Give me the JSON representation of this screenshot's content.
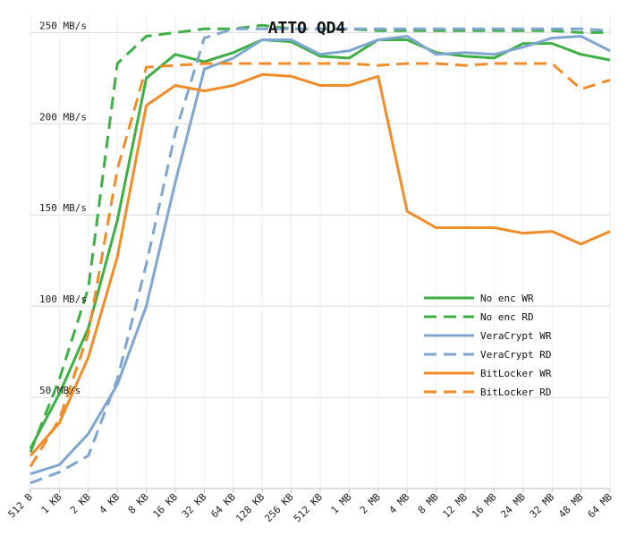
{
  "chart_data": {
    "type": "line",
    "title": "ATTO QD4",
    "xlabel": "",
    "ylabel": "",
    "ylim": [
      0,
      260
    ],
    "y_ticks": [
      {
        "value": 50,
        "label": "50 MB/s"
      },
      {
        "value": 100,
        "label": "100 MB/s"
      },
      {
        "value": 150,
        "label": "150 MB/s"
      },
      {
        "value": 200,
        "label": "200 MB/s"
      },
      {
        "value": 250,
        "label": "250 MB/s"
      }
    ],
    "categories": [
      "512 B",
      "1 KB",
      "2 KB",
      "4 KB",
      "8 KB",
      "16 KB",
      "32 KB",
      "64 KB",
      "128 KB",
      "256 KB",
      "512 KB",
      "1 MB",
      "2 MB",
      "4 MB",
      "8 MB",
      "12 MB",
      "16 MB",
      "24 MB",
      "32 MB",
      "48 MB",
      "64 MB"
    ],
    "grid": true,
    "legend_position": "right-center",
    "series": [
      {
        "name": "No enc WR",
        "color": "#3cb043",
        "dash": "solid",
        "values": [
          22,
          52,
          88,
          147,
          225,
          238,
          234,
          239,
          246,
          245,
          237,
          236,
          246,
          246,
          239,
          237,
          236,
          244,
          244,
          238,
          235
        ]
      },
      {
        "name": "No enc RD",
        "color": "#3cb043",
        "dash": "dashed",
        "values": [
          20,
          60,
          110,
          233,
          248,
          250,
          252,
          252,
          254,
          252,
          252,
          252,
          251,
          251,
          251,
          251,
          251,
          251,
          251,
          250,
          250
        ]
      },
      {
        "name": "VeraCrypt WR",
        "color": "#7ea6d0",
        "dash": "solid",
        "values": [
          8,
          13,
          30,
          57,
          100,
          168,
          230,
          236,
          246,
          246,
          238,
          240,
          246,
          248,
          238,
          239,
          238,
          242,
          247,
          248,
          240
        ]
      },
      {
        "name": "VeraCrypt RD",
        "color": "#7ea6d0",
        "dash": "dashed",
        "values": [
          3,
          9,
          18,
          60,
          123,
          195,
          247,
          252,
          252,
          252,
          252,
          252,
          252,
          252,
          252,
          252,
          252,
          252,
          252,
          252,
          251
        ]
      },
      {
        "name": "BitLocker WR",
        "color": "#f28c28",
        "dash": "solid",
        "values": [
          18,
          36,
          72,
          127,
          210,
          221,
          218,
          221,
          227,
          226,
          221,
          221,
          226,
          152,
          143,
          143,
          143,
          140,
          141,
          134,
          141
        ]
      },
      {
        "name": "BitLocker RD",
        "color": "#f28c28",
        "dash": "dashed",
        "values": [
          12,
          38,
          85,
          175,
          231,
          232,
          233,
          233,
          233,
          233,
          233,
          233,
          232,
          233,
          233,
          232,
          233,
          233,
          233,
          219,
          224
        ]
      }
    ]
  }
}
